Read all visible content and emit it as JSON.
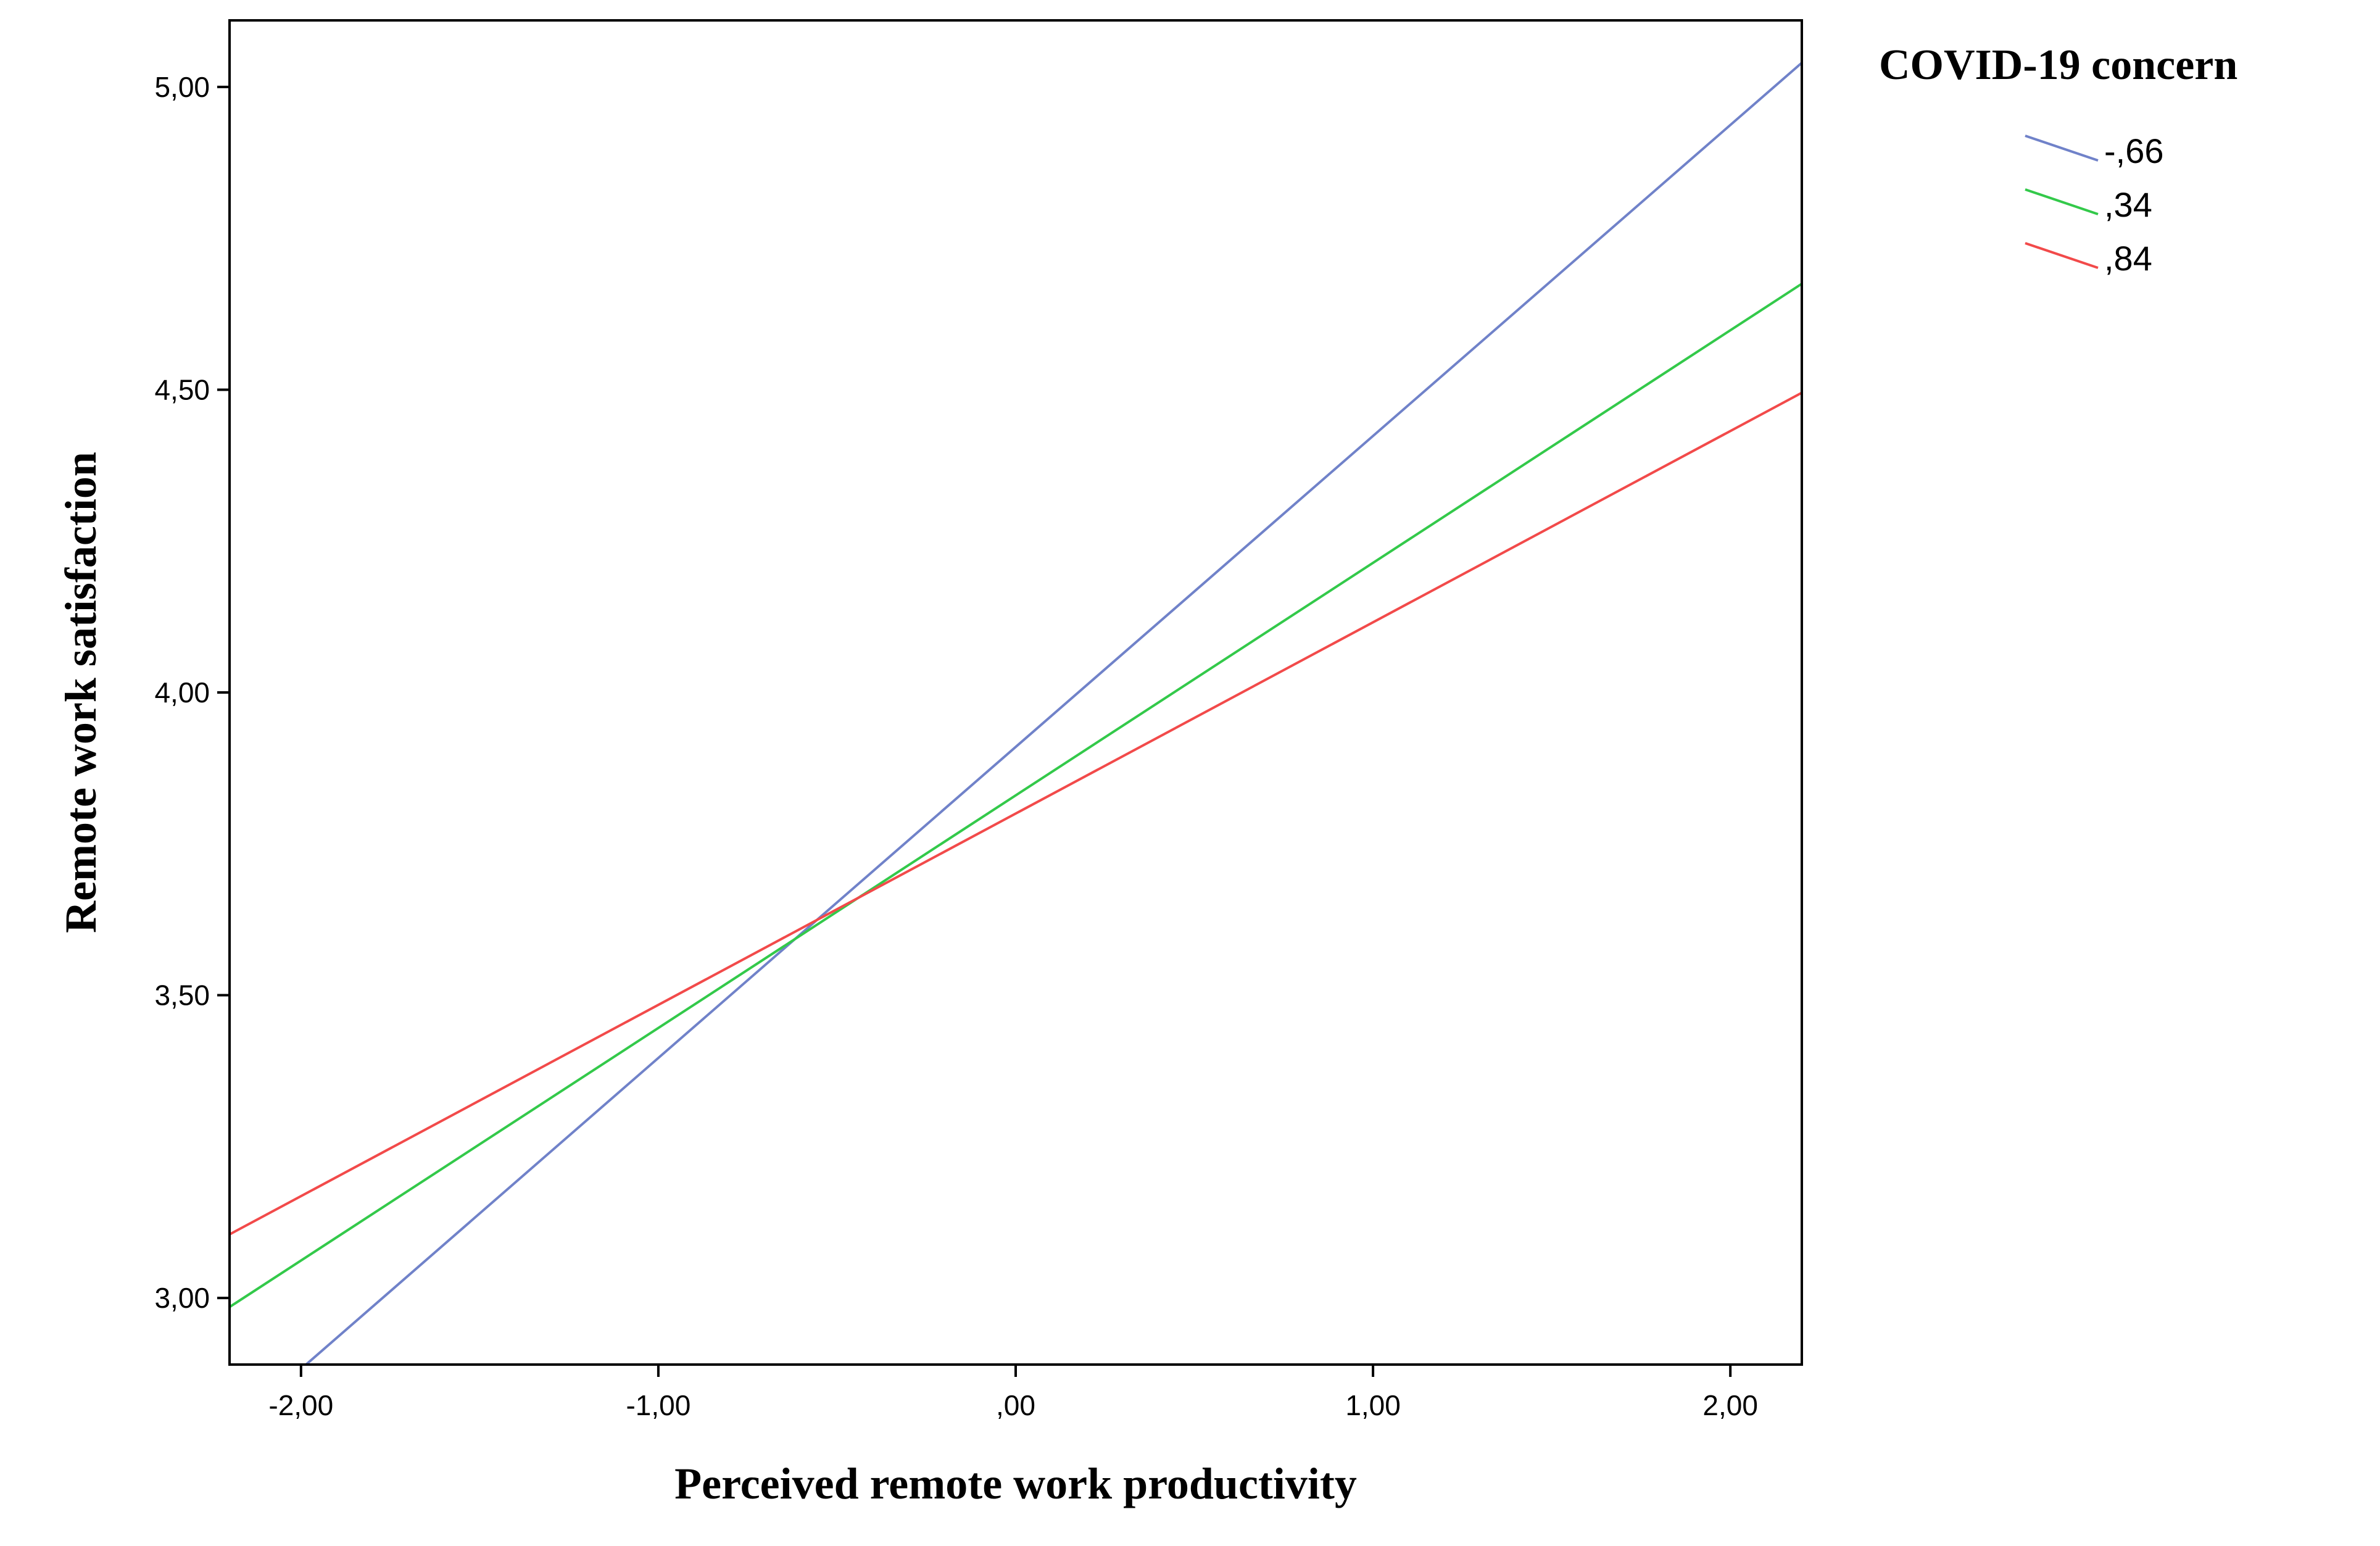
{
  "chart_data": {
    "type": "line",
    "xlabel": "Perceived remote work productivity",
    "ylabel": "Remote work satisfaction",
    "xlim": [
      -2.2,
      2.2
    ],
    "ylim": [
      2.89,
      5.11
    ],
    "x_ticks": [
      -2,
      -1,
      0,
      1,
      2
    ],
    "x_tick_labels": [
      "-2,00",
      "-1,00",
      ",00",
      "1,00",
      "2,00"
    ],
    "y_ticks": [
      3.0,
      3.5,
      4.0,
      4.5,
      5.0
    ],
    "y_tick_labels": [
      "3,00",
      "3,50",
      "4,00",
      "4,50",
      "5,00"
    ],
    "grid": false,
    "legend": {
      "title": "COVID-19 concern",
      "position": "top-right, outside plot"
    },
    "series": [
      {
        "name": "-,66",
        "color": "#7082c9",
        "x": [
          -2.2,
          2.2
        ],
        "y": [
          2.78,
          5.04
        ]
      },
      {
        "name": ",34",
        "color": "#33c94a",
        "x": [
          -2.2,
          2.2
        ],
        "y": [
          2.985,
          4.675
        ]
      },
      {
        "name": ",84",
        "color": "#f24a4a",
        "x": [
          -2.2,
          2.2
        ],
        "y": [
          3.105,
          4.495
        ]
      }
    ]
  }
}
